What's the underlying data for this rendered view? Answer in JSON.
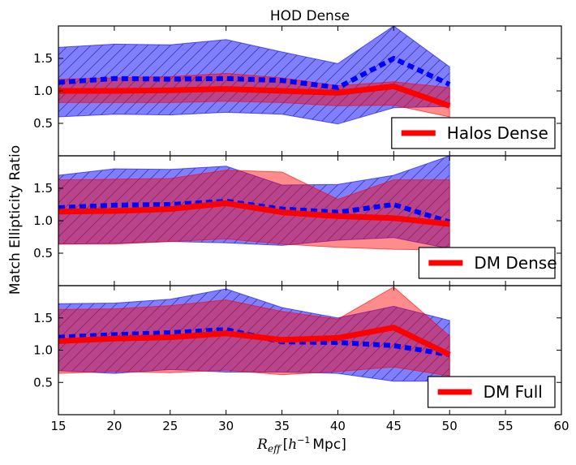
{
  "title": "HOD Dense",
  "ylabel": "Match Ellipticity Ratio",
  "xlabel_math": "R",
  "xlabel_sub": "eff",
  "xlabel_bracket_open": "[",
  "xlabel_h": "h",
  "xlabel_exp": "−1",
  "xlabel_unit": "Mpc]",
  "colors": {
    "red_line": "#ff0000",
    "red_band": "#ff0000",
    "blue_line": "#0000ff",
    "blue_band": "#0000ff",
    "hatch": "#3c3ca0"
  },
  "chart_data": [
    {
      "type": "line",
      "panel": "top",
      "legend_label": "Halos Dense",
      "legend_location": "lower-right",
      "xlim": [
        15,
        60
      ],
      "ylim": [
        0.0,
        2.0
      ],
      "yticks": [
        0.5,
        1.0,
        1.5
      ],
      "ytick_labels": [
        "0.5",
        "1.0",
        "1.5"
      ],
      "x": [
        15,
        20,
        25,
        30,
        35,
        40,
        45,
        50
      ],
      "series": [
        {
          "name": "red solid",
          "style": "solid",
          "values": [
            1.0,
            1.0,
            1.01,
            1.03,
            1.0,
            0.97,
            1.07,
            0.77
          ],
          "band_upper": [
            1.18,
            1.2,
            1.22,
            1.27,
            1.2,
            1.08,
            1.14,
            1.05
          ],
          "band_lower": [
            0.82,
            0.82,
            0.82,
            0.84,
            0.82,
            0.77,
            0.78,
            0.6
          ]
        },
        {
          "name": "blue dashed",
          "style": "dashed",
          "values": [
            1.13,
            1.19,
            1.18,
            1.19,
            1.16,
            1.05,
            1.5,
            1.1
          ],
          "band_upper": [
            1.67,
            1.72,
            1.71,
            1.79,
            1.6,
            1.42,
            2.0,
            1.37
          ],
          "band_lower": [
            0.6,
            0.64,
            0.63,
            0.67,
            0.64,
            0.49,
            0.74,
            0.76
          ]
        }
      ]
    },
    {
      "type": "line",
      "panel": "middle",
      "legend_label": "DM Dense",
      "legend_location": "lower-right",
      "xlim": [
        15,
        60
      ],
      "ylim": [
        0.0,
        2.0
      ],
      "yticks": [
        0.5,
        1.0,
        1.5
      ],
      "ytick_labels": [
        "0.5",
        "1.0",
        "1.5"
      ],
      "x": [
        15,
        20,
        25,
        30,
        35,
        40,
        45,
        50
      ],
      "series": [
        {
          "name": "red solid",
          "style": "solid",
          "values": [
            1.14,
            1.15,
            1.18,
            1.27,
            1.13,
            1.07,
            1.04,
            0.95
          ],
          "band_upper": [
            1.63,
            1.64,
            1.65,
            1.78,
            1.75,
            1.33,
            1.63,
            1.63
          ],
          "band_lower": [
            0.64,
            0.64,
            0.68,
            0.72,
            0.64,
            0.59,
            0.56,
            0.55
          ]
        },
        {
          "name": "blue dashed",
          "style": "dashed",
          "values": [
            1.2,
            1.24,
            1.25,
            1.3,
            1.18,
            1.13,
            1.25,
            0.98
          ],
          "band_upper": [
            1.7,
            1.8,
            1.79,
            1.84,
            1.55,
            1.56,
            1.7,
            2.0
          ],
          "band_lower": [
            0.64,
            0.65,
            0.68,
            0.66,
            0.62,
            0.7,
            0.74,
            0.57
          ]
        }
      ]
    },
    {
      "type": "line",
      "panel": "bottom",
      "legend_label": "DM Full",
      "legend_location": "lower-right",
      "xlim": [
        15,
        60
      ],
      "ylim": [
        0.0,
        2.0
      ],
      "xticks": [
        15,
        20,
        25,
        30,
        35,
        40,
        45,
        50,
        55,
        60
      ],
      "xtick_labels": [
        "15",
        "20",
        "25",
        "30",
        "35",
        "40",
        "45",
        "50",
        "55",
        "60"
      ],
      "yticks": [
        0.5,
        1.0,
        1.5
      ],
      "ytick_labels": [
        "0.5",
        "1.0",
        "1.5"
      ],
      "x": [
        15,
        20,
        25,
        30,
        35,
        40,
        45,
        50
      ],
      "series": [
        {
          "name": "red solid",
          "style": "solid",
          "values": [
            1.14,
            1.18,
            1.2,
            1.26,
            1.16,
            1.19,
            1.35,
            0.93
          ],
          "band_upper": [
            1.63,
            1.64,
            1.69,
            1.78,
            1.6,
            1.48,
            1.98,
            1.22
          ],
          "band_lower": [
            0.64,
            0.67,
            0.65,
            0.69,
            0.62,
            0.67,
            0.74,
            0.6
          ]
        },
        {
          "name": "blue dashed",
          "style": "dashed",
          "values": [
            1.2,
            1.24,
            1.27,
            1.32,
            1.13,
            1.12,
            1.07,
            0.93
          ],
          "band_upper": [
            1.72,
            1.73,
            1.79,
            1.95,
            1.66,
            1.5,
            1.68,
            1.46
          ],
          "band_lower": [
            0.68,
            0.64,
            0.7,
            0.66,
            0.66,
            0.64,
            0.52,
            0.52
          ]
        }
      ]
    }
  ]
}
